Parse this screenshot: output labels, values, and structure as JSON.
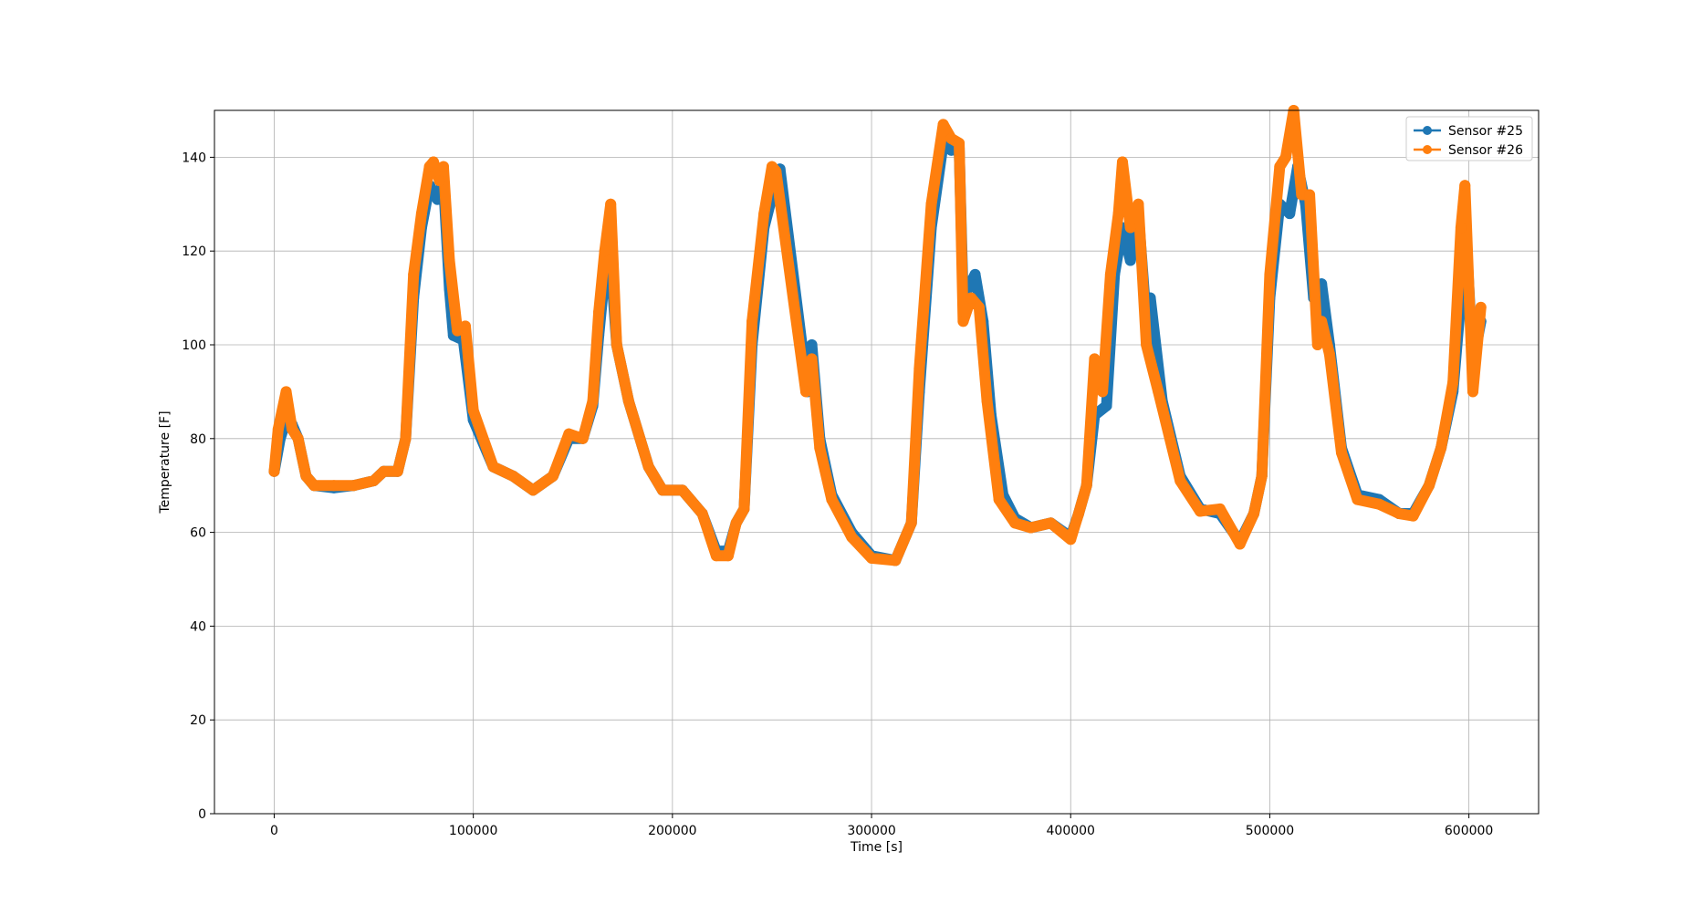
{
  "chart_data": {
    "type": "line",
    "title": "",
    "xlabel": "Time [s]",
    "ylabel": "Temperature [F]",
    "xlim": [
      -30000,
      635000
    ],
    "ylim": [
      0,
      150
    ],
    "xticks": [
      0,
      100000,
      200000,
      300000,
      400000,
      500000,
      600000
    ],
    "xtick_labels": [
      "0",
      "100000",
      "200000",
      "300000",
      "400000",
      "500000",
      "600000"
    ],
    "yticks": [
      0,
      20,
      40,
      60,
      80,
      100,
      120,
      140
    ],
    "ytick_labels": [
      "0",
      "20",
      "40",
      "60",
      "80",
      "100",
      "120",
      "140"
    ],
    "grid": true,
    "legend_position": "top-right",
    "markers": "circle",
    "series": [
      {
        "name": "Sensor #25",
        "color": "#1f77b4",
        "points": [
          [
            0,
            73
          ],
          [
            3000,
            80
          ],
          [
            6000,
            84
          ],
          [
            9000,
            83
          ],
          [
            12000,
            80
          ],
          [
            16000,
            72
          ],
          [
            20000,
            70
          ],
          [
            30000,
            69.5
          ],
          [
            40000,
            70
          ],
          [
            50000,
            71
          ],
          [
            55000,
            73
          ],
          [
            62000,
            73
          ],
          [
            66000,
            80
          ],
          [
            70000,
            110
          ],
          [
            74000,
            125
          ],
          [
            78000,
            134
          ],
          [
            82000,
            131
          ],
          [
            85000,
            135
          ],
          [
            88000,
            112
          ],
          [
            90000,
            102
          ],
          [
            95000,
            101
          ],
          [
            100000,
            84
          ],
          [
            110000,
            74
          ],
          [
            120000,
            72
          ],
          [
            130000,
            69
          ],
          [
            140000,
            72
          ],
          [
            148000,
            80
          ],
          [
            155000,
            80
          ],
          [
            160000,
            87
          ],
          [
            163000,
            102
          ],
          [
            166000,
            115
          ],
          [
            169000,
            118
          ],
          [
            172000,
            100
          ],
          [
            178000,
            88
          ],
          [
            188000,
            74
          ],
          [
            195000,
            69
          ],
          [
            205000,
            69
          ],
          [
            215000,
            64
          ],
          [
            222000,
            56
          ],
          [
            228000,
            56
          ],
          [
            232000,
            62
          ],
          [
            236000,
            65
          ],
          [
            240000,
            100
          ],
          [
            246000,
            125
          ],
          [
            252000,
            135
          ],
          [
            254000,
            137.5
          ],
          [
            268000,
            90
          ],
          [
            270000,
            100
          ],
          [
            274000,
            80
          ],
          [
            280000,
            68
          ],
          [
            290000,
            60
          ],
          [
            300000,
            55
          ],
          [
            312000,
            54
          ],
          [
            320000,
            62
          ],
          [
            324000,
            90
          ],
          [
            330000,
            125
          ],
          [
            336000,
            143
          ],
          [
            340000,
            141.5
          ],
          [
            344000,
            142
          ],
          [
            346000,
            110
          ],
          [
            352000,
            115
          ],
          [
            356000,
            105
          ],
          [
            360000,
            85
          ],
          [
            366000,
            68
          ],
          [
            372000,
            63
          ],
          [
            380000,
            61
          ],
          [
            390000,
            62
          ],
          [
            400000,
            59
          ],
          [
            404000,
            64
          ],
          [
            408000,
            70
          ],
          [
            412000,
            85
          ],
          [
            418000,
            87
          ],
          [
            422000,
            115
          ],
          [
            426000,
            125
          ],
          [
            430000,
            118
          ],
          [
            434000,
            128
          ],
          [
            438000,
            105
          ],
          [
            440000,
            110
          ],
          [
            446000,
            88
          ],
          [
            455000,
            72
          ],
          [
            465000,
            65
          ],
          [
            475000,
            64
          ],
          [
            485000,
            58
          ],
          [
            492000,
            64
          ],
          [
            496000,
            72
          ],
          [
            500000,
            110
          ],
          [
            505000,
            130
          ],
          [
            510000,
            128
          ],
          [
            514000,
            138
          ],
          [
            518000,
            130
          ],
          [
            522000,
            110
          ],
          [
            526000,
            113
          ],
          [
            530000,
            100
          ],
          [
            536000,
            78
          ],
          [
            544000,
            68
          ],
          [
            555000,
            67
          ],
          [
            565000,
            64
          ],
          [
            572000,
            64
          ],
          [
            580000,
            70
          ],
          [
            586000,
            78
          ],
          [
            592000,
            90
          ],
          [
            596000,
            110
          ],
          [
            598000,
            128
          ],
          [
            602000,
            96
          ],
          [
            606000,
            105
          ]
        ]
      },
      {
        "name": "Sensor #26",
        "color": "#ff7f0e",
        "points": [
          [
            0,
            73
          ],
          [
            2000,
            82
          ],
          [
            6000,
            90
          ],
          [
            9000,
            82
          ],
          [
            12000,
            80
          ],
          [
            16000,
            72
          ],
          [
            20000,
            70
          ],
          [
            30000,
            70
          ],
          [
            40000,
            70
          ],
          [
            50000,
            71
          ],
          [
            55000,
            73
          ],
          [
            62000,
            73
          ],
          [
            66000,
            80
          ],
          [
            70000,
            115
          ],
          [
            74000,
            128
          ],
          [
            78000,
            138
          ],
          [
            80000,
            139
          ],
          [
            83000,
            135
          ],
          [
            85000,
            138
          ],
          [
            88000,
            118
          ],
          [
            92000,
            103
          ],
          [
            96000,
            104
          ],
          [
            100000,
            86
          ],
          [
            110000,
            74
          ],
          [
            120000,
            72
          ],
          [
            130000,
            69
          ],
          [
            140000,
            72
          ],
          [
            148000,
            81
          ],
          [
            155000,
            80
          ],
          [
            160000,
            88
          ],
          [
            163000,
            107
          ],
          [
            166000,
            120
          ],
          [
            169000,
            130
          ],
          [
            172000,
            100
          ],
          [
            178000,
            88
          ],
          [
            188000,
            74
          ],
          [
            195000,
            69
          ],
          [
            205000,
            69
          ],
          [
            215000,
            64
          ],
          [
            222000,
            55
          ],
          [
            228000,
            55
          ],
          [
            232000,
            62
          ],
          [
            236000,
            65
          ],
          [
            240000,
            105
          ],
          [
            246000,
            128
          ],
          [
            250000,
            138
          ],
          [
            252000,
            137
          ],
          [
            267000,
            90
          ],
          [
            270000,
            97
          ],
          [
            274000,
            78
          ],
          [
            280000,
            67
          ],
          [
            290000,
            59
          ],
          [
            300000,
            54.5
          ],
          [
            312000,
            54
          ],
          [
            320000,
            62
          ],
          [
            324000,
            95
          ],
          [
            330000,
            130
          ],
          [
            336000,
            147
          ],
          [
            340000,
            144
          ],
          [
            344000,
            143
          ],
          [
            346000,
            105
          ],
          [
            350000,
            110
          ],
          [
            354000,
            108
          ],
          [
            358000,
            88
          ],
          [
            364000,
            67
          ],
          [
            372000,
            62
          ],
          [
            380000,
            61
          ],
          [
            390000,
            62
          ],
          [
            400000,
            58.5
          ],
          [
            404000,
            64
          ],
          [
            408000,
            70
          ],
          [
            412000,
            97
          ],
          [
            416000,
            90
          ],
          [
            420000,
            115
          ],
          [
            424000,
            128
          ],
          [
            426000,
            139
          ],
          [
            430000,
            125
          ],
          [
            434000,
            130
          ],
          [
            438000,
            100
          ],
          [
            444000,
            90
          ],
          [
            455000,
            71
          ],
          [
            465000,
            64.5
          ],
          [
            475000,
            65
          ],
          [
            485000,
            57.5
          ],
          [
            492000,
            64
          ],
          [
            496000,
            72
          ],
          [
            500000,
            115
          ],
          [
            505000,
            138
          ],
          [
            508000,
            140
          ],
          [
            512000,
            150
          ],
          [
            516000,
            132
          ],
          [
            520000,
            132
          ],
          [
            524000,
            100
          ],
          [
            526000,
            105
          ],
          [
            530000,
            98
          ],
          [
            536000,
            77
          ],
          [
            544000,
            67
          ],
          [
            555000,
            66
          ],
          [
            565000,
            64
          ],
          [
            572000,
            63.5
          ],
          [
            580000,
            70
          ],
          [
            586000,
            78
          ],
          [
            592000,
            92
          ],
          [
            596000,
            125
          ],
          [
            598000,
            134
          ],
          [
            602000,
            90
          ],
          [
            606000,
            108
          ]
        ]
      }
    ]
  }
}
